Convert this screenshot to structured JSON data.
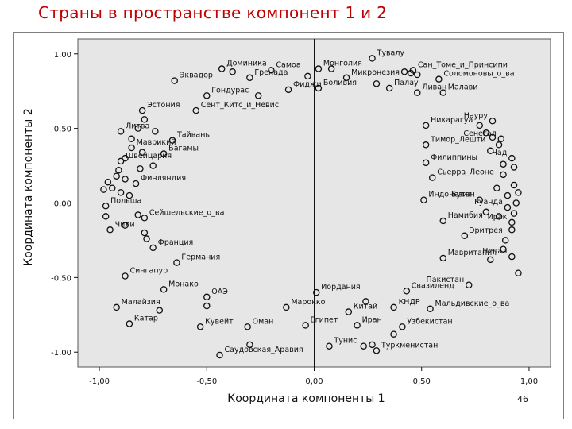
{
  "slide": {
    "title": "Страны в пространстве компонент 1 и 2",
    "page_number": "46"
  },
  "colors": {
    "title": "#c00000",
    "plot_background": "#e6e6e6",
    "marker": "#111111"
  },
  "chart_data": {
    "type": "scatter",
    "xlabel": "Координата компоненты 1",
    "ylabel": "Координата компоненты 2",
    "xlim": [
      -1.1,
      1.1
    ],
    "ylim": [
      -1.1,
      1.1
    ],
    "xticks": [
      -1.0,
      -0.5,
      0.0,
      0.5,
      1.0
    ],
    "xtick_labels": [
      "-1,00",
      "-0,50",
      "0,00",
      "0,50",
      "1,00"
    ],
    "yticks": [
      1.0,
      0.5,
      0.0,
      -0.5,
      -1.0
    ],
    "ytick_labels": [
      "1,00",
      "0,50",
      "0,00",
      "-0,50",
      "-1,00"
    ],
    "reference_lines": {
      "x": 0,
      "y": 0
    },
    "labeled_points": [
      {
        "label": "Тувалу",
        "x": 0.27,
        "y": 0.97
      },
      {
        "label": "Доминика",
        "x": -0.43,
        "y": 0.9
      },
      {
        "label": "Самоа",
        "x": -0.2,
        "y": 0.89
      },
      {
        "label": "Монголия",
        "x": 0.02,
        "y": 0.9
      },
      {
        "label": "Сан_Томе_и_Принсипи",
        "x": 0.46,
        "y": 0.89
      },
      {
        "label": "Эквадор",
        "x": -0.65,
        "y": 0.82
      },
      {
        "label": "Гренада",
        "x": -0.3,
        "y": 0.84
      },
      {
        "label": "Микронезия",
        "x": 0.15,
        "y": 0.84
      },
      {
        "label": "Соломоновы_о_ва",
        "x": 0.58,
        "y": 0.83
      },
      {
        "label": "Фиджи",
        "x": -0.12,
        "y": 0.76
      },
      {
        "label": "Боливия",
        "x": 0.02,
        "y": 0.77
      },
      {
        "label": "Палау",
        "x": 0.35,
        "y": 0.77
      },
      {
        "label": "Гондурас",
        "x": -0.5,
        "y": 0.72
      },
      {
        "label": "Ливан",
        "x": 0.48,
        "y": 0.74
      },
      {
        "label": "Малави",
        "x": 0.6,
        "y": 0.74
      },
      {
        "label": "Эстония",
        "x": -0.8,
        "y": 0.62
      },
      {
        "label": "Сент_Китс_и_Невис",
        "x": -0.55,
        "y": 0.62
      },
      {
        "label": "Науру",
        "x": 0.83,
        "y": 0.55
      },
      {
        "label": "Никарагуа",
        "x": 0.52,
        "y": 0.52
      },
      {
        "label": "Литва",
        "x": -0.9,
        "y": 0.48
      },
      {
        "label": "Сенегал",
        "x": 0.87,
        "y": 0.43
      },
      {
        "label": "Тайвань",
        "x": -0.66,
        "y": 0.42
      },
      {
        "label": "Маврикий",
        "x": -0.85,
        "y": 0.37
      },
      {
        "label": "Тимор_Лешти",
        "x": 0.52,
        "y": 0.39
      },
      {
        "label": "Багамы",
        "x": -0.7,
        "y": 0.33
      },
      {
        "label": "Швейцария",
        "x": -0.9,
        "y": 0.28
      },
      {
        "label": "Чад",
        "x": 0.92,
        "y": 0.3
      },
      {
        "label": "Филиппины",
        "x": 0.52,
        "y": 0.27
      },
      {
        "label": "Сьерра_Леоне",
        "x": 0.55,
        "y": 0.17
      },
      {
        "label": "Финляндия",
        "x": -0.83,
        "y": 0.13
      },
      {
        "label": "Индонезия",
        "x": 0.51,
        "y": 0.02
      },
      {
        "label": "Бутан",
        "x": 0.77,
        "y": 0.02
      },
      {
        "label": "Руанда",
        "x": 0.9,
        "y": -0.03
      },
      {
        "label": "Польша",
        "x": -0.97,
        "y": -0.02
      },
      {
        "label": "Сейшельские_о_ва",
        "x": -0.79,
        "y": -0.1
      },
      {
        "label": "Намибия",
        "x": 0.6,
        "y": -0.12
      },
      {
        "label": "Ирак",
        "x": 0.92,
        "y": -0.13
      },
      {
        "label": "Чили",
        "x": -0.95,
        "y": -0.18
      },
      {
        "label": "Эритрея",
        "x": 0.7,
        "y": -0.22
      },
      {
        "label": "Франция",
        "x": -0.75,
        "y": -0.3
      },
      {
        "label": "Непал",
        "x": 0.92,
        "y": -0.36
      },
      {
        "label": "Мавритания",
        "x": 0.6,
        "y": -0.37
      },
      {
        "label": "Германия",
        "x": -0.64,
        "y": -0.4
      },
      {
        "label": "Сингапур",
        "x": -0.88,
        "y": -0.49
      },
      {
        "label": "Пакистан",
        "x": 0.72,
        "y": -0.55
      },
      {
        "label": "Монако",
        "x": -0.7,
        "y": -0.58
      },
      {
        "label": "Свазиленд",
        "x": 0.43,
        "y": -0.59
      },
      {
        "label": "Иордания",
        "x": 0.01,
        "y": -0.6
      },
      {
        "label": "ОАЭ",
        "x": -0.5,
        "y": -0.63
      },
      {
        "label": "Малайзия",
        "x": -0.92,
        "y": -0.7
      },
      {
        "label": "Марокко",
        "x": -0.13,
        "y": -0.7
      },
      {
        "label": "Китай",
        "x": 0.16,
        "y": -0.73
      },
      {
        "label": "КНДР",
        "x": 0.37,
        "y": -0.7
      },
      {
        "label": "Мальдивские_о_ва",
        "x": 0.54,
        "y": -0.71
      },
      {
        "label": "Катар",
        "x": -0.86,
        "y": -0.81
      },
      {
        "label": "Кувейт",
        "x": -0.53,
        "y": -0.83
      },
      {
        "label": "Оман",
        "x": -0.31,
        "y": -0.83
      },
      {
        "label": "Египет",
        "x": -0.04,
        "y": -0.82
      },
      {
        "label": "Иран",
        "x": 0.2,
        "y": -0.82
      },
      {
        "label": "Узбекистан",
        "x": 0.41,
        "y": -0.83
      },
      {
        "label": "Тунис",
        "x": 0.07,
        "y": -0.96
      },
      {
        "label": "Туркменистан",
        "x": 0.29,
        "y": -0.99
      },
      {
        "label": "Саудовская_Аравия",
        "x": -0.44,
        "y": -1.02
      }
    ],
    "unlabeled_points": [
      {
        "x": -0.38,
        "y": 0.88
      },
      {
        "x": -0.03,
        "y": 0.85
      },
      {
        "x": 0.08,
        "y": 0.9
      },
      {
        "x": 0.42,
        "y": 0.88
      },
      {
        "x": 0.45,
        "y": 0.87
      },
      {
        "x": 0.48,
        "y": 0.86
      },
      {
        "x": -0.26,
        "y": 0.72
      },
      {
        "x": 0.29,
        "y": 0.8
      },
      {
        "x": -0.79,
        "y": 0.56
      },
      {
        "x": -0.82,
        "y": 0.5
      },
      {
        "x": -0.74,
        "y": 0.48
      },
      {
        "x": -0.85,
        "y": 0.43
      },
      {
        "x": -0.8,
        "y": 0.34
      },
      {
        "x": -0.88,
        "y": 0.3
      },
      {
        "x": -0.75,
        "y": 0.25
      },
      {
        "x": -0.81,
        "y": 0.23
      },
      {
        "x": -0.91,
        "y": 0.22
      },
      {
        "x": -0.92,
        "y": 0.18
      },
      {
        "x": -0.88,
        "y": 0.16
      },
      {
        "x": -0.94,
        "y": 0.1
      },
      {
        "x": -0.98,
        "y": 0.09
      },
      {
        "x": -0.96,
        "y": 0.14
      },
      {
        "x": -0.9,
        "y": 0.07
      },
      {
        "x": -0.86,
        "y": 0.05
      },
      {
        "x": 0.77,
        "y": 0.52
      },
      {
        "x": 0.8,
        "y": 0.47
      },
      {
        "x": 0.83,
        "y": 0.44
      },
      {
        "x": 0.86,
        "y": 0.39
      },
      {
        "x": 0.82,
        "y": 0.35
      },
      {
        "x": 0.88,
        "y": 0.26
      },
      {
        "x": 0.93,
        "y": 0.24
      },
      {
        "x": 0.88,
        "y": 0.19
      },
      {
        "x": 0.93,
        "y": 0.12
      },
      {
        "x": 0.85,
        "y": 0.1
      },
      {
        "x": 0.95,
        "y": 0.07
      },
      {
        "x": 0.9,
        "y": 0.05
      },
      {
        "x": 0.94,
        "y": 0.0
      },
      {
        "x": 0.8,
        "y": -0.06
      },
      {
        "x": 0.93,
        "y": -0.07
      },
      {
        "x": 0.86,
        "y": -0.09
      },
      {
        "x": 0.92,
        "y": -0.18
      },
      {
        "x": 0.89,
        "y": -0.25
      },
      {
        "x": 0.88,
        "y": -0.31
      },
      {
        "x": 0.82,
        "y": -0.38
      },
      {
        "x": 0.95,
        "y": -0.47
      },
      {
        "x": -0.97,
        "y": -0.09
      },
      {
        "x": -0.82,
        "y": -0.08
      },
      {
        "x": -0.88,
        "y": -0.15
      },
      {
        "x": -0.79,
        "y": -0.2
      },
      {
        "x": -0.78,
        "y": -0.24
      },
      {
        "x": 0.24,
        "y": -0.66
      },
      {
        "x": -0.5,
        "y": -0.69
      },
      {
        "x": -0.72,
        "y": -0.72
      },
      {
        "x": 0.23,
        "y": -0.96
      },
      {
        "x": 0.27,
        "y": -0.95
      },
      {
        "x": 0.37,
        "y": -0.88
      },
      {
        "x": -0.3,
        "y": -0.95
      }
    ]
  }
}
